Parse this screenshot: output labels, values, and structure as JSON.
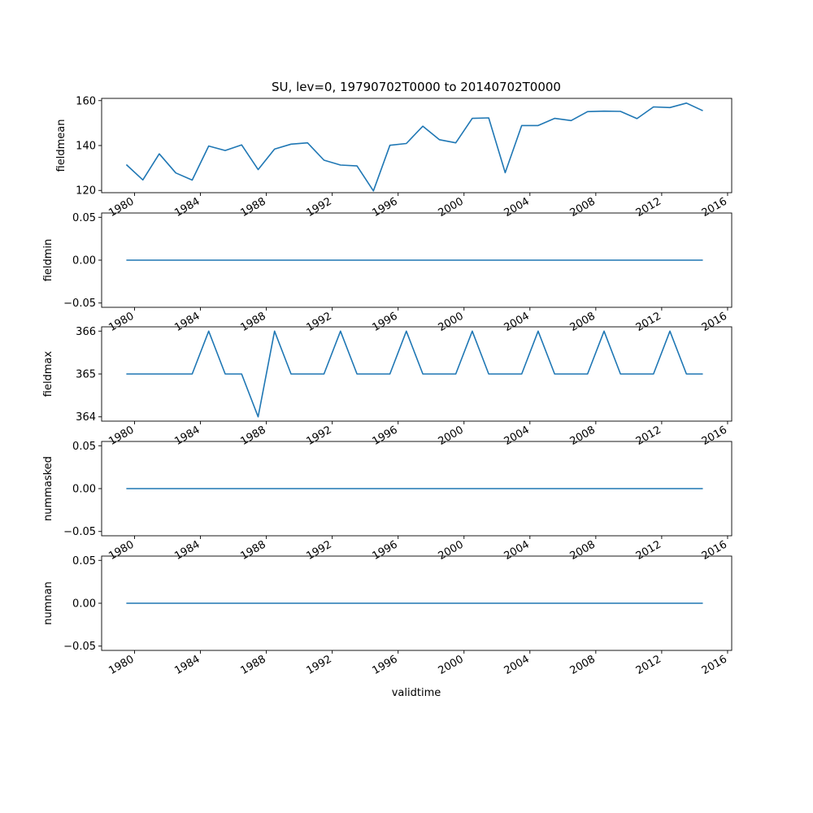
{
  "chart_data": {
    "type": "line",
    "title": "SU, lev=0, 19790702T0000 to 20140702T0000",
    "xlabel": "validtime",
    "x": [
      1979,
      1980,
      1981,
      1982,
      1983,
      1984,
      1985,
      1986,
      1987,
      1988,
      1989,
      1990,
      1991,
      1992,
      1993,
      1994,
      1995,
      1996,
      1997,
      1998,
      1999,
      2000,
      2001,
      2002,
      2003,
      2004,
      2005,
      2006,
      2007,
      2008,
      2009,
      2010,
      2011,
      2012,
      2013,
      2014
    ],
    "x_tick_labels": [
      "1980",
      "1984",
      "1988",
      "1992",
      "1996",
      "2000",
      "2004",
      "2008",
      "2012",
      "2016"
    ],
    "x_tick_values": [
      1980,
      1984,
      1988,
      1992,
      1996,
      2000,
      2004,
      2008,
      2012,
      2016
    ],
    "series_color": "#1f77b4",
    "panels": [
      {
        "ylabel": "fieldmean",
        "ylim": [
          119,
          161
        ],
        "y_tick_labels": [
          "120",
          "140",
          "160"
        ],
        "y_tick_values": [
          120,
          140,
          160
        ],
        "values": [
          131.5,
          124.7,
          136.3,
          127.8,
          124.6,
          139.8,
          137.8,
          140.3,
          129.3,
          138.4,
          140.6,
          141.2,
          133.5,
          131.3,
          130.9,
          119.8,
          140.1,
          140.9,
          148.6,
          142.6,
          141.2,
          152.1,
          152.3,
          127.9,
          148.9,
          148.9,
          152.1,
          151.1,
          155.1,
          155.3,
          155.2,
          152.0,
          157.2,
          156.9,
          158.9,
          155.5
        ]
      },
      {
        "ylabel": "fieldmin",
        "ylim": [
          -0.055,
          0.055
        ],
        "y_tick_labels": [
          "0.05",
          "0.00",
          "−0.05"
        ],
        "y_tick_values": [
          0.05,
          0.0,
          -0.05
        ],
        "values": [
          0,
          0,
          0,
          0,
          0,
          0,
          0,
          0,
          0,
          0,
          0,
          0,
          0,
          0,
          0,
          0,
          0,
          0,
          0,
          0,
          0,
          0,
          0,
          0,
          0,
          0,
          0,
          0,
          0,
          0,
          0,
          0,
          0,
          0,
          0,
          0
        ]
      },
      {
        "ylabel": "fieldmax",
        "ylim": [
          363.9,
          366.1
        ],
        "y_tick_labels": [
          "366",
          "365",
          "364"
        ],
        "y_tick_values": [
          366,
          365,
          364
        ],
        "values": [
          365,
          365,
          365,
          365,
          365,
          366,
          365,
          365,
          364,
          366,
          365,
          365,
          365,
          366,
          365,
          365,
          365,
          366,
          365,
          365,
          365,
          366,
          365,
          365,
          365,
          366,
          365,
          365,
          365,
          366,
          365,
          365,
          365,
          366,
          365,
          365
        ]
      },
      {
        "ylabel": "nummasked",
        "ylim": [
          -0.055,
          0.055
        ],
        "y_tick_labels": [
          "0.05",
          "0.00",
          "−0.05"
        ],
        "y_tick_values": [
          0.05,
          0.0,
          -0.05
        ],
        "values": [
          0,
          0,
          0,
          0,
          0,
          0,
          0,
          0,
          0,
          0,
          0,
          0,
          0,
          0,
          0,
          0,
          0,
          0,
          0,
          0,
          0,
          0,
          0,
          0,
          0,
          0,
          0,
          0,
          0,
          0,
          0,
          0,
          0,
          0,
          0,
          0
        ]
      },
      {
        "ylabel": "numnan",
        "ylim": [
          -0.055,
          0.055
        ],
        "y_tick_labels": [
          "0.05",
          "0.00",
          "−0.05"
        ],
        "y_tick_values": [
          0.05,
          0.0,
          -0.05
        ],
        "values": [
          0,
          0,
          0,
          0,
          0,
          0,
          0,
          0,
          0,
          0,
          0,
          0,
          0,
          0,
          0,
          0,
          0,
          0,
          0,
          0,
          0,
          0,
          0,
          0,
          0,
          0,
          0,
          0,
          0,
          0,
          0,
          0,
          0,
          0,
          0,
          0
        ]
      }
    ]
  }
}
